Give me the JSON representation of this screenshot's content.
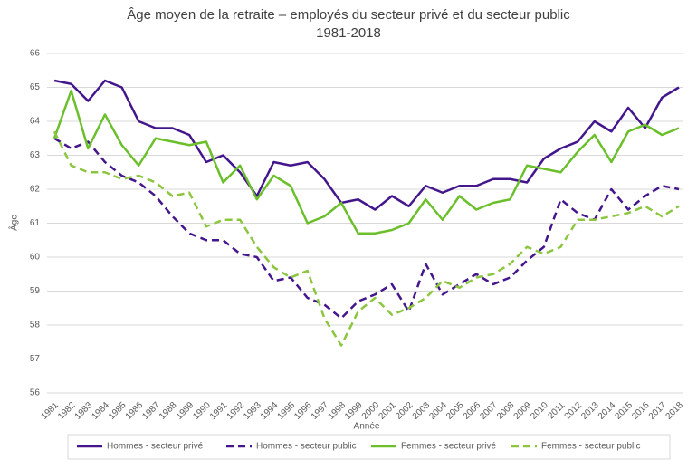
{
  "chart_data": {
    "type": "line",
    "title": [
      "Âge moyen de la retraite – employés du secteur privé et du secteur public",
      "1981-2018"
    ],
    "x_label": "Année",
    "y_label": "Âge",
    "categories": [
      "1981",
      "1982",
      "1983",
      "1984",
      "1985",
      "1986",
      "1987",
      "1988",
      "1989",
      "1990",
      "1991",
      "1992",
      "1993",
      "1994",
      "1995",
      "1996",
      "1997",
      "1998",
      "1999",
      "2000",
      "2001",
      "2002",
      "2003",
      "2004",
      "2005",
      "2006",
      "2007",
      "2008",
      "2009",
      "2010",
      "2011",
      "2012",
      "2013",
      "2014",
      "2015",
      "2016",
      "2017",
      "2018"
    ],
    "ylim": [
      56,
      66
    ],
    "yticks": [
      56,
      57,
      58,
      59,
      60,
      61,
      62,
      63,
      64,
      65,
      66
    ],
    "grid": true,
    "legend": "bottom",
    "series": [
      {
        "name": "Hommes - secteur privé",
        "color": "#44168c",
        "line_style": "solid",
        "values": [
          65.2,
          65.1,
          64.6,
          65.2,
          65.0,
          64.0,
          63.8,
          63.8,
          63.6,
          62.8,
          63.0,
          62.5,
          61.8,
          62.8,
          62.7,
          62.8,
          62.3,
          61.6,
          61.7,
          61.4,
          61.8,
          61.5,
          62.1,
          61.9,
          62.1,
          62.1,
          62.3,
          62.3,
          62.2,
          62.9,
          63.2,
          63.4,
          64.0,
          63.7,
          64.4,
          63.8,
          64.7,
          65.0
        ]
      },
      {
        "name": "Hommes - secteur public",
        "color": "#44168c",
        "line_style": "dashed",
        "values": [
          63.5,
          63.2,
          63.4,
          62.8,
          62.4,
          62.2,
          61.8,
          61.2,
          60.7,
          60.5,
          60.5,
          60.1,
          60.0,
          59.3,
          59.4,
          58.8,
          58.6,
          58.2,
          58.7,
          58.9,
          59.2,
          58.4,
          59.8,
          58.9,
          59.2,
          59.5,
          59.2,
          59.4,
          59.9,
          60.3,
          61.7,
          61.3,
          61.1,
          62.0,
          61.4,
          61.8,
          62.1,
          62.0
        ]
      },
      {
        "name": "Femmes - secteur privé",
        "color": "#6abf2a",
        "line_style": "solid",
        "values": [
          63.5,
          64.9,
          63.2,
          64.2,
          63.3,
          62.7,
          63.5,
          63.4,
          63.3,
          63.4,
          62.2,
          62.7,
          61.7,
          62.4,
          62.1,
          61.0,
          61.2,
          61.6,
          60.7,
          60.7,
          60.8,
          61.0,
          61.7,
          61.1,
          61.8,
          61.4,
          61.6,
          61.7,
          62.7,
          62.6,
          62.5,
          63.1,
          63.6,
          62.8,
          63.7,
          63.9,
          63.6,
          63.8
        ]
      },
      {
        "name": "Femmes - secteur public",
        "color": "#8cc63f",
        "line_style": "dashed",
        "values": [
          63.7,
          62.7,
          62.5,
          62.5,
          62.3,
          62.4,
          62.2,
          61.8,
          61.9,
          60.9,
          61.1,
          61.1,
          60.3,
          59.7,
          59.4,
          59.6,
          58.2,
          57.4,
          58.4,
          58.8,
          58.3,
          58.5,
          58.8,
          59.3,
          59.1,
          59.4,
          59.5,
          59.8,
          60.3,
          60.1,
          60.3,
          61.1,
          61.1,
          61.2,
          61.3,
          61.5,
          61.2,
          61.5
        ]
      }
    ]
  }
}
